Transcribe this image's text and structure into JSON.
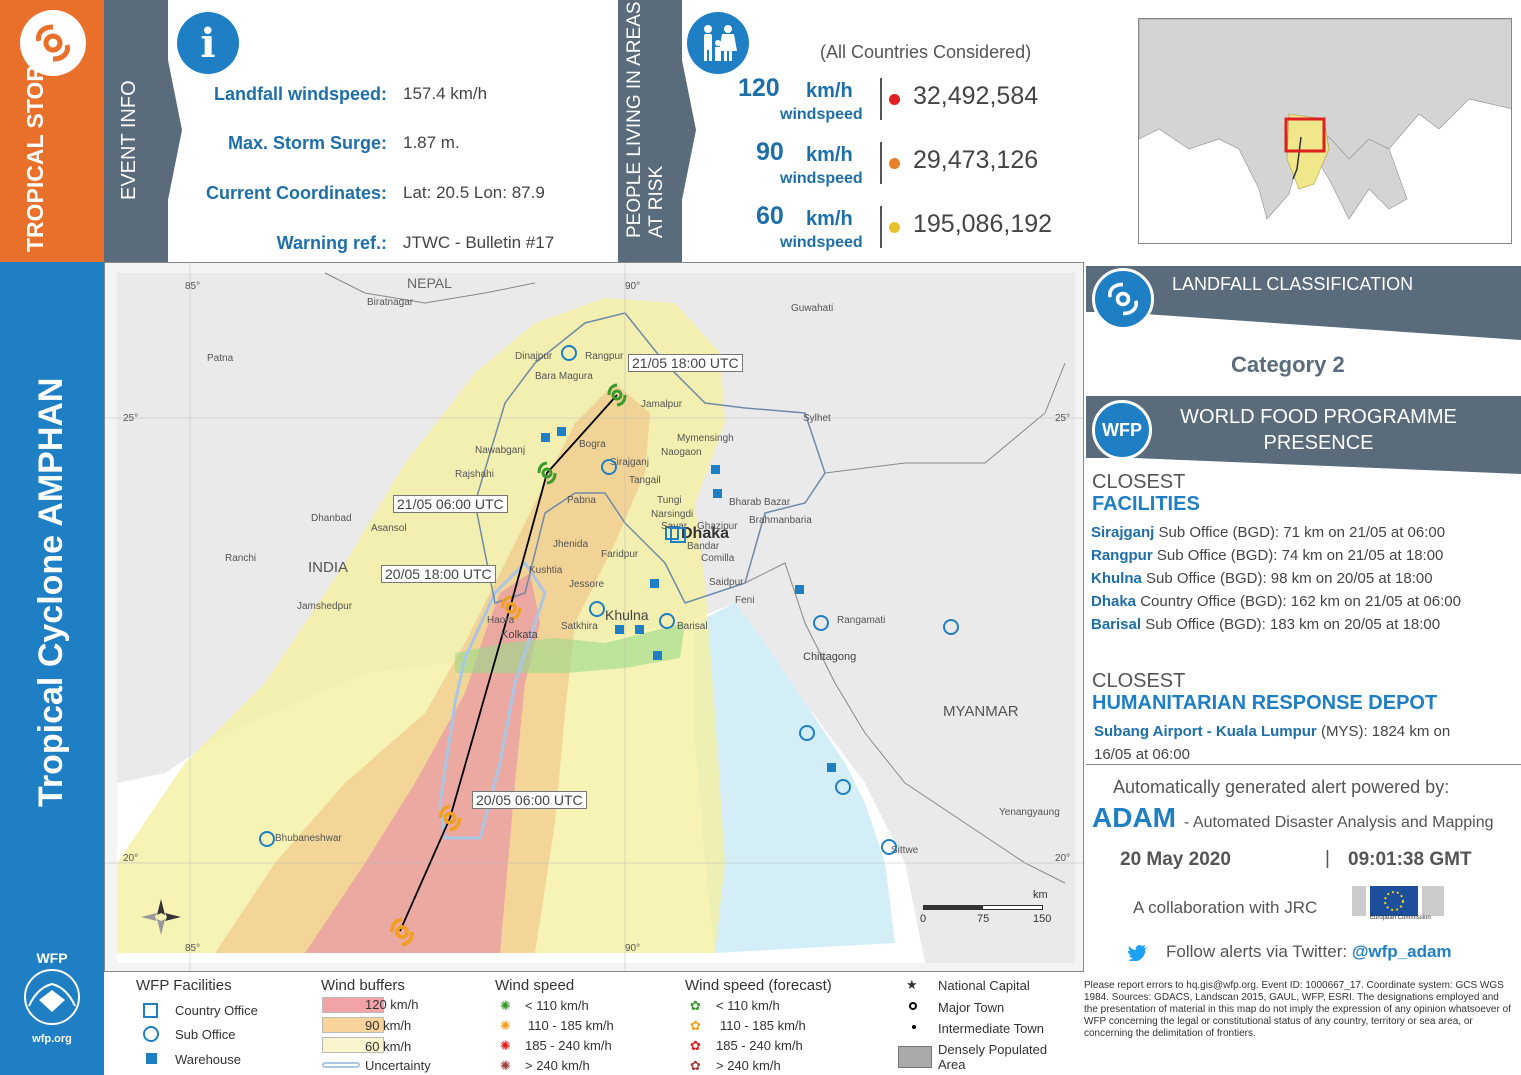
{
  "header": {
    "storm_type": "TROPICAL STORM",
    "event_info_label": "EVENT INFO",
    "people_label_1": "PEOPLE LIVING IN AREAS",
    "people_label_2": "AT RISK",
    "all_countries": "(All Countries Considered)"
  },
  "event_info": [
    {
      "label": "Landfall windspeed:",
      "value": "157.4 km/h"
    },
    {
      "label": "Max. Storm Surge:",
      "value": "1.87 m."
    },
    {
      "label": "Current Coordinates:",
      "value": "Lat: 20.5 Lon: 87.9"
    },
    {
      "label": "Warning ref.:",
      "value": "JTWC - Bulletin #17"
    }
  ],
  "risk_rows": [
    {
      "speed": "120",
      "unit": "km/h",
      "sub": "windspeed",
      "population": "32,492,584",
      "color": "#e02020"
    },
    {
      "speed": "90",
      "unit": "km/h",
      "sub": "windspeed",
      "population": "29,473,126",
      "color": "#e8822a"
    },
    {
      "speed": "60",
      "unit": "km/h",
      "sub": "windspeed",
      "population": "195,086,192",
      "color": "#e8c22a"
    }
  ],
  "side_title": "Tropical Cyclone AMPHAN",
  "wfp_logo_text": "WFP",
  "wfp_url": "wfp.org",
  "map": {
    "country_labels": [
      "NEPAL",
      "INDIA",
      "MYANMAR"
    ],
    "capital": "Dhaka",
    "cities": [
      "Biratnagar",
      "Patna",
      "Dinajpur",
      "Rangpur",
      "Bara Magura",
      "Jamalpur",
      "Mymensingh",
      "Bogra",
      "Nawabganj",
      "Rajshahi",
      "Sirajganj",
      "Tangail",
      "Pabna",
      "Tungi",
      "Narsingdi",
      "Savar",
      "Ghazipur",
      "Jhenida",
      "Faridpur",
      "Kushtia",
      "Jessore",
      "Khulna",
      "Satkhira",
      "Barisal",
      "Kolkata",
      "Haora",
      "Bandar",
      "Comilla",
      "Saidpur",
      "Feni",
      "Chittagong",
      "Rangamati",
      "Sylhet",
      "Bharab Bazar",
      "Brahmanbaria",
      "Guwahati",
      "Dhanbad",
      "Asansol",
      "Ranchi",
      "Jamshedpur",
      "Bhubaneshwar",
      "Yenangyaung",
      "Sittwe",
      "Naogaon"
    ],
    "track_labels": [
      "21/05 18:00 UTC",
      "21/05 06:00 UTC",
      "20/05 18:00 UTC",
      "20/05 06:00 UTC"
    ],
    "lon_labels": [
      "85°",
      "90°"
    ],
    "lat_labels": [
      "25°",
      "20°"
    ],
    "scale_labels": [
      "0",
      "75",
      "150"
    ],
    "scale_unit": "km"
  },
  "landfall": {
    "title": "LANDFALL CLASSIFICATION",
    "category": "Category 2"
  },
  "presence": {
    "title_1": "WORLD FOOD PROGRAMME",
    "title_2": "PRESENCE",
    "closest": "CLOSEST",
    "facilities": "FACILITIES",
    "items": [
      {
        "name": "Sirajganj",
        "text": "Sub Office (BGD): 71 km on 21/05 at 06:00"
      },
      {
        "name": "Rangpur",
        "text": "Sub Office (BGD): 74 km on 21/05 at 18:00"
      },
      {
        "name": "Khulna",
        "text": "Sub Office (BGD): 98 km on 20/05 at 18:00"
      },
      {
        "name": "Dhaka",
        "text": "Country Office (BGD): 162 km on 21/05 at 06:00"
      },
      {
        "name": "Barisal",
        "text": "Sub Office (BGD): 183 km on 20/05 at 18:00"
      }
    ],
    "depot_closest": "CLOSEST",
    "depot_title": "HUMANITARIAN RESPONSE DEPOT",
    "depot_name": "Subang Airport - Kuala Lumpur",
    "depot_text_1": " (MYS): 1824 km on",
    "depot_text_2": "16/05 at 06:00"
  },
  "footer": {
    "powered": "Automatically generated alert powered by:",
    "adam": "ADAM",
    "adam_full": "- Automated Disaster Analysis and Mapping",
    "date": "20 May 2020",
    "time": "09:01:38 GMT",
    "collab": "A collaboration with JRC",
    "twitter_prefix": "Follow alerts via Twitter:",
    "twitter_handle": "@wfp_adam"
  },
  "legend": {
    "facilities_title": "WFP Facilities",
    "facilities": [
      "Country Office",
      "Sub Office",
      "Warehouse"
    ],
    "buffers_title": "Wind buffers",
    "buffers": [
      {
        "label": "120 km/h",
        "color": "#f2a3a8"
      },
      {
        "label": "90 km/h",
        "color": "#f9d39a"
      },
      {
        "label": "60 km/h",
        "color": "#fbf5cf"
      }
    ],
    "uncertainty": "Uncertainty",
    "speed_title": "Wind speed",
    "speed_forecast_title": "Wind speed (forecast)",
    "speeds": [
      {
        "label": "< 110 km/h",
        "color": "#3a9a2a"
      },
      {
        "label": "110 - 185 km/h",
        "color": "#f0a020"
      },
      {
        "label": "185 - 240 km/h",
        "color": "#e02020"
      },
      {
        "label": "> 240 km/h",
        "color": "#a0403a"
      }
    ],
    "places": [
      "National Capital",
      "Major Town",
      "Intermediate Town",
      "Densely Populated Area"
    ]
  },
  "disclaimer": "Please report errors to hq.gis@wfp.org. Event ID: 1000667_17. Coordinate system: GCS WGS 1984. Sources: GDACS, Landscan 2015, GAUL, WFP, ESRI. The designations employed and the presentation of material in this map do not imply the expression of any opinion whatsoever of WFP concerning the legal or constitutional status of any country, territory or sea area, or concerning the delimitation of frontiers.",
  "eu_label": "European Commission"
}
